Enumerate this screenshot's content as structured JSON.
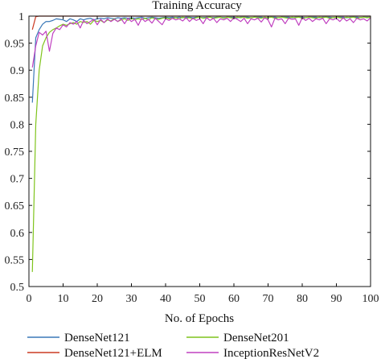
{
  "chart_data": {
    "type": "line",
    "title": "Training Accuracy",
    "xlabel": "No. of Epochs",
    "ylabel": "",
    "xlim": [
      0,
      100
    ],
    "ylim": [
      0.5,
      1.0
    ],
    "x_ticks": [
      0,
      10,
      20,
      30,
      40,
      50,
      60,
      70,
      80,
      90,
      100
    ],
    "y_ticks": [
      0.5,
      0.55,
      0.6,
      0.65,
      0.7,
      0.75,
      0.8,
      0.85,
      0.9,
      0.95,
      1
    ],
    "x_tick_labels": [
      "0",
      "10",
      "20",
      "30",
      "40",
      "50",
      "60",
      "70",
      "80",
      "90",
      "100"
    ],
    "y_tick_labels": [
      "0.5",
      "0.55",
      "0.6",
      "0.65",
      "0.7",
      "0.75",
      "0.8",
      "0.85",
      "0.9",
      "0.95",
      "1"
    ],
    "grid": false,
    "legend_position": "bottom",
    "series": [
      {
        "name": "DenseNet121",
        "color": "#3a78b8",
        "x": [
          1,
          2,
          3,
          4,
          5,
          6,
          7,
          8,
          9,
          10,
          11,
          12,
          13,
          14,
          15,
          16,
          17,
          18,
          19,
          20,
          21,
          22,
          23,
          24,
          25,
          26,
          27,
          28,
          29,
          30,
          31,
          32,
          33,
          34,
          35,
          36,
          37,
          38,
          39,
          40,
          41,
          42,
          43,
          44,
          45,
          46,
          47,
          48,
          49,
          50,
          51,
          52,
          53,
          54,
          55,
          56,
          57,
          58,
          59,
          60,
          61,
          62,
          63,
          64,
          65,
          66,
          67,
          68,
          69,
          70,
          71,
          72,
          73,
          74,
          75,
          76,
          77,
          78,
          79,
          80,
          81,
          82,
          83,
          84,
          85,
          86,
          87,
          88,
          89,
          90,
          91,
          92,
          93,
          94,
          95,
          96,
          97,
          98,
          99,
          100
        ],
        "values": [
          0.84,
          0.96,
          0.975,
          0.985,
          0.99,
          0.99,
          0.992,
          0.995,
          0.994,
          0.993,
          0.99,
          0.995,
          0.993,
          0.99,
          0.995,
          0.993,
          0.995,
          0.996,
          0.993,
          0.995,
          0.996,
          0.995,
          0.997,
          0.996,
          0.995,
          0.997,
          0.996,
          0.997,
          0.996,
          0.997,
          0.996,
          0.997,
          0.998,
          0.996,
          0.997,
          0.998,
          0.997,
          0.996,
          0.997,
          0.998,
          0.997,
          0.998,
          0.997,
          0.998,
          0.997,
          0.998,
          0.998,
          0.997,
          0.998,
          0.998,
          0.997,
          0.998,
          0.998,
          0.997,
          0.998,
          0.998,
          0.997,
          0.998,
          0.998,
          0.998,
          0.997,
          0.998,
          0.998,
          0.998,
          0.997,
          0.998,
          0.998,
          0.998,
          0.997,
          0.998,
          0.998,
          0.998,
          0.997,
          0.998,
          0.998,
          0.998,
          0.997,
          0.998,
          0.998,
          0.998,
          0.997,
          0.998,
          0.998,
          0.998,
          0.997,
          0.998,
          0.998,
          0.998,
          0.997,
          0.998,
          0.998,
          0.998,
          0.997,
          0.998,
          0.998,
          0.998,
          0.997,
          0.998,
          0.998,
          0.998
        ]
      },
      {
        "name": "DenseNet121+ELM",
        "color": "#cc3a22",
        "x": [
          1,
          2,
          3,
          4,
          5,
          6,
          7,
          8,
          9,
          10,
          11,
          12,
          13,
          14,
          15,
          16,
          17,
          18,
          19,
          20,
          21,
          22,
          23,
          24,
          25,
          26,
          27,
          28,
          29,
          30,
          31,
          32,
          33,
          34,
          35,
          36,
          37,
          38,
          39,
          40,
          41,
          42,
          43,
          44,
          45,
          46,
          47,
          48,
          49,
          50,
          51,
          52,
          53,
          54,
          55,
          56,
          57,
          58,
          59,
          60,
          61,
          62,
          63,
          64,
          65,
          66,
          67,
          68,
          69,
          70,
          71,
          72,
          73,
          74,
          75,
          76,
          77,
          78,
          79,
          80,
          81,
          82,
          83,
          84,
          85,
          86,
          87,
          88,
          89,
          90,
          91,
          92,
          93,
          94,
          95,
          96,
          97,
          98,
          99,
          100
        ],
        "values": [
          0.975,
          0.999,
          1,
          1,
          1,
          1,
          1,
          1,
          1,
          1,
          1,
          1,
          1,
          1,
          1,
          1,
          1,
          1,
          1,
          1,
          1,
          1,
          1,
          1,
          1,
          1,
          1,
          1,
          1,
          1,
          1,
          1,
          1,
          1,
          1,
          1,
          1,
          1,
          1,
          1,
          1,
          1,
          1,
          1,
          1,
          1,
          1,
          1,
          1,
          1,
          1,
          1,
          1,
          1,
          1,
          1,
          1,
          1,
          1,
          1,
          1,
          1,
          1,
          1,
          1,
          1,
          1,
          1,
          1,
          1,
          1,
          1,
          1,
          1,
          1,
          1,
          1,
          1,
          1,
          1,
          1,
          1,
          1,
          1,
          1,
          1,
          1,
          1,
          1,
          1,
          1,
          1,
          1,
          1,
          1,
          1,
          1,
          1,
          1,
          1
        ]
      },
      {
        "name": "DenseNet201",
        "color": "#7fc41c",
        "x": [
          1,
          2,
          3,
          4,
          5,
          6,
          7,
          8,
          9,
          10,
          11,
          12,
          13,
          14,
          15,
          16,
          17,
          18,
          19,
          20,
          21,
          22,
          23,
          24,
          25,
          26,
          27,
          28,
          29,
          30,
          31,
          32,
          33,
          34,
          35,
          36,
          37,
          38,
          39,
          40,
          41,
          42,
          43,
          44,
          45,
          46,
          47,
          48,
          49,
          50,
          51,
          52,
          53,
          54,
          55,
          56,
          57,
          58,
          59,
          60,
          61,
          62,
          63,
          64,
          65,
          66,
          67,
          68,
          69,
          70,
          71,
          72,
          73,
          74,
          75,
          76,
          77,
          78,
          79,
          80,
          81,
          82,
          83,
          84,
          85,
          86,
          87,
          88,
          89,
          90,
          91,
          92,
          93,
          94,
          95,
          96,
          97,
          98,
          99,
          100
        ],
        "values": [
          0.527,
          0.8,
          0.9,
          0.945,
          0.96,
          0.97,
          0.975,
          0.978,
          0.982,
          0.985,
          0.983,
          0.986,
          0.988,
          0.985,
          0.99,
          0.988,
          0.99,
          0.985,
          0.992,
          0.99,
          0.992,
          0.988,
          0.993,
          0.991,
          0.995,
          0.99,
          0.993,
          0.995,
          0.992,
          0.996,
          0.993,
          0.995,
          0.994,
          0.996,
          0.993,
          0.997,
          0.995,
          0.994,
          0.996,
          0.997,
          0.995,
          0.996,
          0.997,
          0.995,
          0.998,
          0.996,
          0.997,
          0.995,
          0.997,
          0.998,
          0.996,
          0.997,
          0.998,
          0.996,
          0.997,
          0.998,
          0.996,
          0.998,
          0.997,
          0.996,
          0.998,
          0.997,
          0.998,
          0.996,
          0.997,
          0.998,
          0.997,
          0.996,
          0.998,
          0.997,
          0.998,
          0.996,
          0.997,
          0.998,
          0.997,
          0.996,
          0.998,
          0.997,
          0.998,
          0.996,
          0.997,
          0.998,
          0.997,
          0.996,
          0.998,
          0.997,
          0.998,
          0.996,
          0.997,
          0.998,
          0.997,
          0.996,
          0.998,
          0.997,
          0.998,
          0.996,
          0.997,
          0.998,
          0.997,
          0.998
        ]
      },
      {
        "name": "InceptionResNetV2",
        "color": "#c040c0",
        "x": [
          1,
          2,
          3,
          4,
          5,
          6,
          7,
          8,
          9,
          10,
          11,
          12,
          13,
          14,
          15,
          16,
          17,
          18,
          19,
          20,
          21,
          22,
          23,
          24,
          25,
          26,
          27,
          28,
          29,
          30,
          31,
          32,
          33,
          34,
          35,
          36,
          37,
          38,
          39,
          40,
          41,
          42,
          43,
          44,
          45,
          46,
          47,
          48,
          49,
          50,
          51,
          52,
          53,
          54,
          55,
          56,
          57,
          58,
          59,
          60,
          61,
          62,
          63,
          64,
          65,
          66,
          67,
          68,
          69,
          70,
          71,
          72,
          73,
          74,
          75,
          76,
          77,
          78,
          79,
          80,
          81,
          82,
          83,
          84,
          85,
          86,
          87,
          88,
          89,
          90,
          91,
          92,
          93,
          94,
          95,
          96,
          97,
          98,
          99,
          100
        ],
        "values": [
          0.905,
          0.945,
          0.97,
          0.965,
          0.972,
          0.935,
          0.968,
          0.978,
          0.975,
          0.984,
          0.98,
          0.988,
          0.985,
          0.99,
          0.978,
          0.992,
          0.986,
          0.99,
          0.994,
          0.984,
          0.994,
          0.988,
          0.995,
          0.99,
          0.994,
          0.99,
          0.995,
          0.986,
          0.996,
          0.99,
          0.994,
          0.983,
          0.996,
          0.99,
          0.994,
          0.987,
          0.996,
          0.99,
          0.984,
          0.995,
          0.992,
          0.996,
          0.993,
          0.995,
          0.991,
          0.997,
          0.99,
          0.996,
          0.992,
          0.995,
          0.986,
          0.997,
          0.992,
          0.996,
          0.988,
          0.995,
          0.993,
          0.996,
          0.99,
          0.997,
          0.994,
          0.99,
          0.996,
          0.986,
          0.995,
          0.993,
          0.996,
          0.989,
          0.997,
          0.993,
          0.98,
          0.996,
          0.993,
          0.995,
          0.986,
          0.996,
          0.994,
          0.995,
          0.983,
          0.997,
          0.992,
          0.996,
          0.99,
          0.995,
          0.993,
          0.996,
          0.986,
          0.995,
          0.993,
          0.996,
          0.99,
          0.997,
          0.991,
          0.995,
          0.988,
          0.996,
          0.993,
          0.995,
          0.991,
          0.997
        ]
      }
    ]
  }
}
